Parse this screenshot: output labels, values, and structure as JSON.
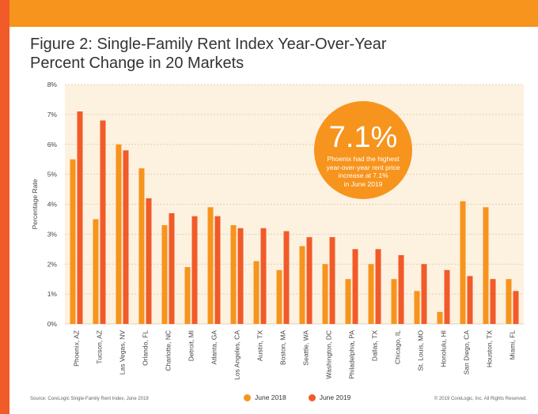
{
  "header": {
    "title_line1": "Figure 2: Single-Family Rent Index Year-Over-Year",
    "title_line2": "Percent Change in 20 Markets"
  },
  "colors": {
    "top_bar": "#f7941d",
    "left_strip": "#f15a29",
    "plot_bg": "#fdf1e0",
    "june2018": "#f7941d",
    "june2019": "#f15a29",
    "callout_bg": "#f7941d"
  },
  "callout": {
    "value": "7.1%",
    "line1": "Phoenix had the highest",
    "line2": "year-over-year rent price",
    "line3": "increase at 7.1%",
    "line4": "in June 2019"
  },
  "legend": {
    "june2018_label": "June 2018",
    "june2019_label": "June 2019"
  },
  "footer": {
    "source": "Source: CoreLogic Single-Family Rent Index, June 2019",
    "copyright": "© 2019 CoreLogic, Inc. All Rights Reserved."
  },
  "chart_data": {
    "type": "bar",
    "ylabel": "Percentage Rate",
    "ylim": [
      0,
      8
    ],
    "yticks": [
      "0%",
      "1%",
      "2%",
      "3%",
      "4%",
      "5%",
      "6%",
      "7%",
      "8%"
    ],
    "legend_position": "bottom",
    "categories": [
      "Phoenix, AZ",
      "Tucson, AZ",
      "Las Vegas, NV",
      "Orlando, FL",
      "Charlotte, NC",
      "Detroit, MI",
      "Atlanta, GA",
      "Los Angeles, CA",
      "Austin, TX",
      "Boston, MA",
      "Seattle, WA",
      "Washington, DC",
      "Philadelphia, PA",
      "Dallas, TX",
      "Chicago, IL",
      "St. Louis, MO",
      "Honolulu, HI",
      "San Diego, CA",
      "Houston, TX",
      "Miami, FL"
    ],
    "series": [
      {
        "name": "June 2018",
        "values": [
          5.5,
          3.5,
          6.0,
          5.2,
          3.3,
          1.9,
          3.9,
          3.3,
          2.1,
          1.8,
          2.6,
          2.0,
          1.5,
          2.0,
          1.5,
          1.1,
          0.4,
          4.1,
          3.9,
          1.5
        ]
      },
      {
        "name": "June 2019",
        "values": [
          7.1,
          6.8,
          5.8,
          4.2,
          3.7,
          3.6,
          3.6,
          3.2,
          3.2,
          3.1,
          2.9,
          2.9,
          2.5,
          2.5,
          2.3,
          2.0,
          1.8,
          1.6,
          1.5,
          1.1
        ]
      }
    ]
  }
}
